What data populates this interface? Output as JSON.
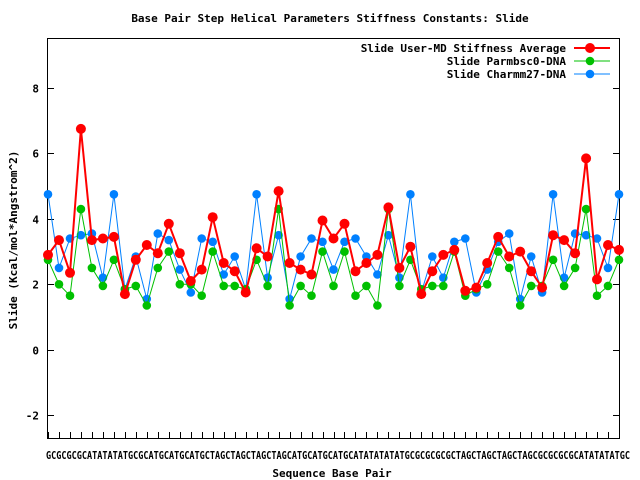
{
  "chart_data": {
    "type": "line",
    "title": "Base Pair Step Helical Parameters Stiffness Constants: Slide",
    "xlabel": "Sequence Base Pair",
    "ylabel": "Slide (Kcal/mol*Angstrom^2)",
    "ylim": [
      -2.7,
      9.5
    ],
    "yticks": [
      -2,
      0,
      2,
      4,
      6,
      8
    ],
    "x_tick_text": "GCGCGCGCATATATATGCGCATGCATGCATGCTAGCTAGCTAGCTAGCATGCATGCATGCATATATATATGCGCGCGCGCTAGCTAGCTAGCTAGCGCGCGCGCATATATATGC",
    "grid": false,
    "legend_position": "top-right",
    "series": [
      {
        "name": "Slide User-MD Stiffness Average",
        "color": "#ff0000",
        "marker": "circle",
        "values": [
          2.9,
          3.35,
          2.35,
          6.75,
          3.35,
          3.4,
          3.45,
          1.7,
          2.75,
          3.2,
          2.95,
          3.85,
          2.95,
          2.1,
          2.45,
          4.05,
          2.65,
          2.4,
          1.75,
          3.1,
          2.85,
          4.85,
          2.65,
          2.45,
          2.3,
          3.95,
          3.4,
          3.85,
          2.4,
          2.65,
          2.9,
          4.35,
          2.5,
          3.15,
          1.7,
          2.4,
          2.9,
          3.05,
          1.8,
          1.9,
          2.65,
          3.45,
          2.85,
          3.0,
          2.4,
          1.9,
          3.5,
          3.35,
          2.95,
          5.85,
          2.15,
          3.2,
          3.05
        ]
      },
      {
        "name": "Slide Parmbsc0-DNA",
        "color": "#00c000",
        "marker": "circle",
        "values": [
          2.75,
          2.0,
          1.65,
          4.3,
          2.5,
          1.95,
          2.75,
          1.85,
          1.95,
          1.35,
          2.5,
          3.0,
          2.0,
          2.0,
          1.65,
          3.0,
          1.95,
          1.95,
          1.85,
          2.75,
          1.95,
          4.3,
          1.35,
          1.95,
          1.65,
          3.0,
          1.95,
          3.0,
          1.65,
          1.95,
          1.35,
          4.3,
          1.95,
          2.75,
          1.85,
          1.95,
          1.95,
          3.0,
          1.65,
          1.85,
          2.0,
          3.0,
          2.5,
          1.35,
          1.95,
          1.95,
          2.75,
          1.95,
          2.5,
          4.3,
          1.65,
          1.95,
          2.75
        ]
      },
      {
        "name": "Slide Charmm27-DNA",
        "color": "#0080ff",
        "marker": "circle",
        "values": [
          4.75,
          2.5,
          3.4,
          3.5,
          3.55,
          2.2,
          4.75,
          1.85,
          2.85,
          1.55,
          3.55,
          3.35,
          2.45,
          1.75,
          3.4,
          3.3,
          2.3,
          2.85,
          1.85,
          4.75,
          2.2,
          3.5,
          1.55,
          2.85,
          3.4,
          3.3,
          2.45,
          3.3,
          3.4,
          2.85,
          2.3,
          3.5,
          2.2,
          4.75,
          1.75,
          2.85,
          2.2,
          3.3,
          3.4,
          1.75,
          2.45,
          3.3,
          3.55,
          1.55,
          2.85,
          1.75,
          4.75,
          2.2,
          3.55,
          3.5,
          3.4,
          2.5,
          4.75
        ]
      }
    ]
  }
}
